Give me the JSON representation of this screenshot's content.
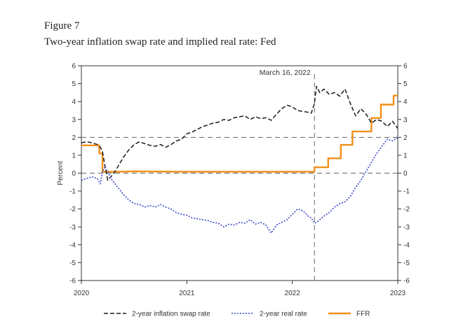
{
  "figure": {
    "label": "Figure 7",
    "title": "Two-year inflation swap rate and implied real rate: Fed"
  },
  "chart_data": {
    "type": "line",
    "title": "Two-year inflation swap rate and implied real rate: Fed",
    "xlabel": "",
    "ylabel": "Percent",
    "xlim": [
      2020.0,
      2023.0
    ],
    "ylim": [
      -6,
      6
    ],
    "x_ticks": [
      2020,
      2021,
      2022,
      2023
    ],
    "x_tick_labels": [
      "2020",
      "2021",
      "2022",
      "2023"
    ],
    "y_ticks": [
      -6,
      -5,
      -4,
      -3,
      -2,
      -1,
      0,
      1,
      2,
      3,
      4,
      5,
      6
    ],
    "y_tick_labels": [
      "-6",
      "-5",
      "-4",
      "-3",
      "-2",
      "-1",
      "0",
      "1",
      "2",
      "3",
      "4",
      "5",
      "6"
    ],
    "reference_lines": {
      "horizontal": [
        2,
        0
      ],
      "vertical": [
        {
          "x": 2022.21,
          "label": "March 16, 2022"
        }
      ]
    },
    "legend_position": "bottom",
    "series": [
      {
        "name": "2-year inflation swap rate",
        "style": "dashed",
        "color": "#1a1a1a",
        "x": [
          2020.0,
          2020.05,
          2020.1,
          2020.15,
          2020.18,
          2020.2,
          2020.22,
          2020.25,
          2020.28,
          2020.32,
          2020.36,
          2020.4,
          2020.45,
          2020.5,
          2020.55,
          2020.6,
          2020.65,
          2020.7,
          2020.75,
          2020.8,
          2020.85,
          2020.9,
          2020.95,
          2021.0,
          2021.05,
          2021.1,
          2021.15,
          2021.2,
          2021.25,
          2021.3,
          2021.35,
          2021.4,
          2021.45,
          2021.5,
          2021.55,
          2021.6,
          2021.65,
          2021.7,
          2021.75,
          2021.8,
          2021.85,
          2021.9,
          2021.95,
          2022.0,
          2022.05,
          2022.1,
          2022.15,
          2022.18,
          2022.21,
          2022.23,
          2022.26,
          2022.3,
          2022.35,
          2022.4,
          2022.45,
          2022.5,
          2022.55,
          2022.6,
          2022.65,
          2022.7,
          2022.75,
          2022.8,
          2022.85,
          2022.9,
          2022.95,
          2023.0
        ],
        "values": [
          1.7,
          1.75,
          1.7,
          1.6,
          1.45,
          1.2,
          0.5,
          -0.4,
          -0.2,
          0.1,
          0.5,
          0.9,
          1.3,
          1.6,
          1.75,
          1.65,
          1.55,
          1.5,
          1.6,
          1.45,
          1.6,
          1.8,
          1.9,
          2.2,
          2.3,
          2.45,
          2.6,
          2.7,
          2.8,
          2.85,
          3.0,
          2.95,
          3.1,
          3.15,
          3.2,
          3.0,
          3.15,
          3.05,
          3.1,
          2.95,
          3.3,
          3.6,
          3.8,
          3.7,
          3.5,
          3.45,
          3.4,
          3.35,
          3.9,
          4.85,
          4.5,
          4.7,
          4.4,
          4.5,
          4.3,
          4.7,
          3.9,
          3.2,
          3.6,
          3.3,
          2.8,
          3.0,
          2.9,
          2.6,
          2.9,
          2.5
        ]
      },
      {
        "name": "2-year real rate",
        "style": "dotted",
        "color": "#3a49c7",
        "x": [
          2020.0,
          2020.05,
          2020.1,
          2020.15,
          2020.18,
          2020.2,
          2020.22,
          2020.25,
          2020.28,
          2020.32,
          2020.36,
          2020.4,
          2020.45,
          2020.5,
          2020.55,
          2020.6,
          2020.65,
          2020.7,
          2020.75,
          2020.8,
          2020.85,
          2020.9,
          2020.95,
          2021.0,
          2021.05,
          2021.1,
          2021.15,
          2021.2,
          2021.25,
          2021.3,
          2021.35,
          2021.4,
          2021.45,
          2021.5,
          2021.55,
          2021.6,
          2021.65,
          2021.7,
          2021.75,
          2021.8,
          2021.85,
          2021.9,
          2021.95,
          2022.0,
          2022.05,
          2022.1,
          2022.15,
          2022.18,
          2022.21,
          2022.23,
          2022.26,
          2022.3,
          2022.35,
          2022.4,
          2022.45,
          2022.5,
          2022.55,
          2022.6,
          2022.65,
          2022.7,
          2022.75,
          2022.8,
          2022.85,
          2022.9,
          2022.95,
          2023.0
        ],
        "values": [
          -0.4,
          -0.3,
          -0.2,
          -0.3,
          -0.6,
          0.1,
          0.3,
          0.1,
          -0.3,
          -0.6,
          -0.9,
          -1.2,
          -1.5,
          -1.7,
          -1.75,
          -1.9,
          -1.8,
          -1.9,
          -1.75,
          -1.9,
          -2.0,
          -2.2,
          -2.3,
          -2.35,
          -2.5,
          -2.55,
          -2.6,
          -2.65,
          -2.75,
          -2.8,
          -3.0,
          -2.85,
          -2.9,
          -2.75,
          -2.8,
          -2.6,
          -2.85,
          -2.75,
          -2.9,
          -3.35,
          -2.9,
          -2.75,
          -2.6,
          -2.3,
          -2.0,
          -2.1,
          -2.4,
          -2.5,
          -2.8,
          -2.75,
          -2.6,
          -2.4,
          -2.2,
          -1.9,
          -1.7,
          -1.6,
          -1.3,
          -0.8,
          -0.4,
          0.1,
          0.6,
          1.1,
          1.5,
          1.9,
          1.8,
          2.0
        ]
      },
      {
        "name": "FFR",
        "style": "solid",
        "color": "#f0901a",
        "x": [
          2020.0,
          2020.17,
          2020.17,
          2020.2,
          2020.2,
          2020.35,
          2020.5,
          2021.0,
          2021.5,
          2022.0,
          2022.21,
          2022.21,
          2022.34,
          2022.34,
          2022.46,
          2022.46,
          2022.57,
          2022.57,
          2022.75,
          2022.75,
          2022.84,
          2022.84,
          2022.96,
          2022.96,
          2023.0
        ],
        "values": [
          1.55,
          1.55,
          1.1,
          1.1,
          0.08,
          0.08,
          0.1,
          0.08,
          0.08,
          0.08,
          0.08,
          0.33,
          0.33,
          0.83,
          0.83,
          1.58,
          1.58,
          2.33,
          2.33,
          3.08,
          3.08,
          3.83,
          3.83,
          4.33,
          4.33
        ]
      }
    ]
  }
}
